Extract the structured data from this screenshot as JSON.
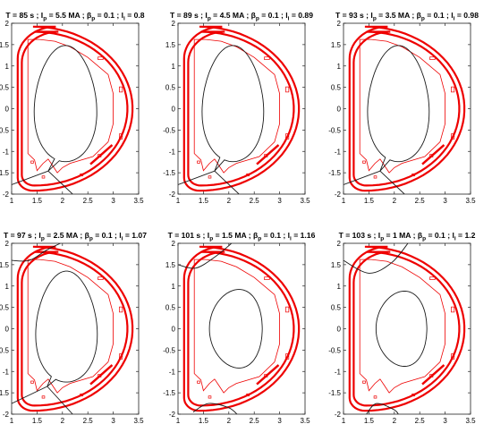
{
  "chart_data": [
    {
      "type": "line",
      "title": {
        "T": "85",
        "Ip": "5.5",
        "betap": "0.1",
        "li": "0.8"
      },
      "xlim": [
        1,
        3.5
      ],
      "ylim": [
        -2,
        2
      ],
      "xticks": [
        "1",
        "1.5",
        "2",
        "2.5",
        "3",
        "3.5"
      ],
      "yticks": [
        "2",
        "1.5",
        "1",
        "0.5",
        "0",
        "-0.5",
        "-1",
        "-1.5",
        "-2"
      ],
      "separatrix": {
        "center": [
          2.06,
          0.12
        ],
        "half_width": 0.61,
        "half_height": 1.36,
        "xpoint": [
          1.72,
          -1.46
        ],
        "legs": [
          [
            [
              1.72,
              -1.46
            ],
            [
              1.0,
              -1.78
            ]
          ],
          [
            [
              1.72,
              -1.46
            ],
            [
              2.2,
              -2.0
            ]
          ]
        ]
      }
    },
    {
      "type": "line",
      "title": {
        "T": "89",
        "Ip": "4.5",
        "betap": "0.1",
        "li": "0.89"
      },
      "xlim": [
        1,
        3.5
      ],
      "ylim": [
        -2,
        2
      ],
      "xticks": [
        "1",
        "1.5",
        "2",
        "2.5",
        "3",
        "3.5"
      ],
      "yticks": [
        "2",
        "1.5",
        "1",
        "0.5",
        "0",
        "-0.5",
        "-1",
        "-1.5",
        "-2"
      ],
      "separatrix": {
        "center": [
          2.08,
          0.12
        ],
        "half_width": 0.6,
        "half_height": 1.36,
        "xpoint": [
          1.72,
          -1.46
        ],
        "legs": [
          [
            [
              1.72,
              -1.46
            ],
            [
              1.0,
              -1.78
            ]
          ],
          [
            [
              1.72,
              -1.46
            ],
            [
              2.2,
              -2.0
            ]
          ]
        ]
      }
    },
    {
      "type": "line",
      "title": {
        "T": "93",
        "Ip": "3.5",
        "betap": "0.1",
        "li": "0.98"
      },
      "xlim": [
        1,
        3.5
      ],
      "ylim": [
        -2,
        2
      ],
      "xticks": [
        "1",
        "1.5",
        "2",
        "2.5",
        "3",
        "3.5"
      ],
      "yticks": [
        "2",
        "1.5",
        "1",
        "0.5",
        "0",
        "-0.5",
        "-1",
        "-1.5",
        "-2"
      ],
      "separatrix": {
        "center": [
          2.08,
          0.12
        ],
        "half_width": 0.6,
        "half_height": 1.36,
        "xpoint": [
          1.72,
          -1.46
        ],
        "legs": [
          [
            [
              1.72,
              -1.46
            ],
            [
              1.0,
              -1.78
            ]
          ],
          [
            [
              1.72,
              -1.46
            ],
            [
              2.2,
              -2.0
            ]
          ]
        ]
      }
    },
    {
      "type": "line",
      "title": {
        "T": "97",
        "Ip": "2.5",
        "betap": "0.1",
        "li": "1.07"
      },
      "xlim": [
        1,
        3.5
      ],
      "ylim": [
        -2,
        2
      ],
      "xticks": [
        "1",
        "1.5",
        "2",
        "2.5",
        "3",
        "3.5"
      ],
      "yticks": [
        "2",
        "1.5",
        "1",
        "0.5",
        "0",
        "-0.5",
        "-1",
        "-1.5",
        "-2"
      ],
      "separatrix": {
        "center": [
          2.08,
          0.05
        ],
        "half_width": 0.6,
        "half_height": 1.3,
        "xpoint": [
          1.7,
          -1.35
        ],
        "legs": [
          [
            [
              1.7,
              -1.35
            ],
            [
              1.0,
              -1.75
            ]
          ],
          [
            [
              1.7,
              -1.35
            ],
            [
              2.2,
              -2.0
            ]
          ]
        ]
      },
      "upper_field_line": [
        [
          1.0,
          1.6
        ],
        [
          1.35,
          1.6
        ],
        [
          1.7,
          1.85
        ],
        [
          2.05,
          2.05
        ]
      ]
    },
    {
      "type": "line",
      "title": {
        "T": "101",
        "Ip": "1.5",
        "betap": "0.1",
        "li": "1.16"
      },
      "xlim": [
        1,
        3.5
      ],
      "ylim": [
        -2,
        2
      ],
      "xticks": [
        "1",
        "1.5",
        "2",
        "2.5",
        "3",
        "3.5"
      ],
      "yticks": [
        "2",
        "1.5",
        "1",
        "0.5",
        "0",
        "-0.5",
        "-1",
        "-1.5",
        "-2"
      ],
      "core_flux_surface": {
        "center": [
          2.2,
          0.0
        ],
        "half_width": 0.52,
        "half_height": 0.92
      },
      "upper_field_line": [
        [
          1.0,
          1.5
        ],
        [
          1.35,
          1.42
        ],
        [
          1.75,
          1.7
        ],
        [
          2.1,
          2.05
        ]
      ],
      "lower_field_line": [
        [
          1.3,
          -1.95
        ],
        [
          1.6,
          -1.75
        ],
        [
          2.0,
          -1.85
        ],
        [
          2.2,
          -2.05
        ]
      ]
    },
    {
      "type": "line",
      "title": {
        "T": "103",
        "Ip": "1",
        "betap": "0.1",
        "li": "1.2"
      },
      "xlim": [
        1,
        3.5
      ],
      "ylim": [
        -2,
        2
      ],
      "xticks": [
        "1",
        "1.5",
        "2",
        "2.5",
        "3",
        "3.5"
      ],
      "yticks": [
        "2",
        "1.5",
        "1",
        "0.5",
        "0",
        "-0.5",
        "-1",
        "-1.5",
        "-2"
      ],
      "core_flux_surface": {
        "center": [
          2.2,
          0.0
        ],
        "half_width": 0.5,
        "half_height": 0.88
      },
      "upper_field_line": [
        [
          1.0,
          1.6
        ],
        [
          1.5,
          1.3
        ],
        [
          1.95,
          1.55
        ],
        [
          2.3,
          2.05
        ]
      ],
      "lower_field_line": [
        [
          1.45,
          -2.0
        ],
        [
          1.65,
          -1.75
        ],
        [
          2.0,
          -1.9
        ],
        [
          2.1,
          -2.05
        ]
      ]
    }
  ],
  "machine_geometry": {
    "color": "#ee0000",
    "outer_coil": {
      "xmin": 1.12,
      "xmax": 3.38,
      "ytop": 1.92,
      "ybot": -1.92,
      "top_r": 0.75,
      "bottom_r": 0.3
    },
    "vessel": {
      "xmin": 1.2,
      "xmax": 3.28,
      "ytop": 1.8,
      "ybot": -1.8,
      "top_r": 0.72,
      "bottom_r": 0.25
    },
    "first_wall": [
      [
        1.32,
        1.62
      ],
      [
        1.32,
        -1.05
      ],
      [
        1.45,
        -1.2
      ],
      [
        1.5,
        -1.45
      ],
      [
        1.62,
        -1.28
      ],
      [
        1.72,
        -1.18
      ],
      [
        1.8,
        -1.32
      ],
      [
        1.9,
        -1.5
      ],
      [
        2.0,
        -1.38
      ],
      [
        2.15,
        -1.28
      ],
      [
        2.6,
        -1.12
      ],
      [
        2.9,
        -0.78
      ],
      [
        3.0,
        -0.35
      ],
      [
        3.0,
        0.35
      ],
      [
        2.9,
        0.8
      ],
      [
        2.5,
        1.2
      ],
      [
        2.15,
        1.45
      ],
      [
        1.85,
        1.58
      ],
      [
        1.55,
        1.62
      ],
      [
        1.32,
        1.62
      ]
    ],
    "coil_blocks": [
      {
        "x": 2.7,
        "y": 1.18,
        "w": 0.1,
        "h": 0.06
      },
      {
        "x": 3.12,
        "y": 0.45,
        "w": 0.06,
        "h": 0.12
      },
      {
        "x": 3.12,
        "y": -0.65,
        "w": 0.06,
        "h": 0.12
      },
      {
        "x": 2.7,
        "y": -1.1,
        "w": 0.06,
        "h": 0.06
      },
      {
        "x": 1.38,
        "y": -1.25,
        "w": 0.05,
        "h": 0.05
      },
      {
        "x": 1.6,
        "y": -1.6,
        "w": 0.05,
        "h": 0.05
      },
      {
        "x": 2.35,
        "y": -1.55,
        "w": 0.05,
        "h": 0.05
      }
    ],
    "lower_diagonal_coil": [
      [
        2.55,
        -1.3
      ],
      [
        2.98,
        -0.85
      ]
    ]
  }
}
